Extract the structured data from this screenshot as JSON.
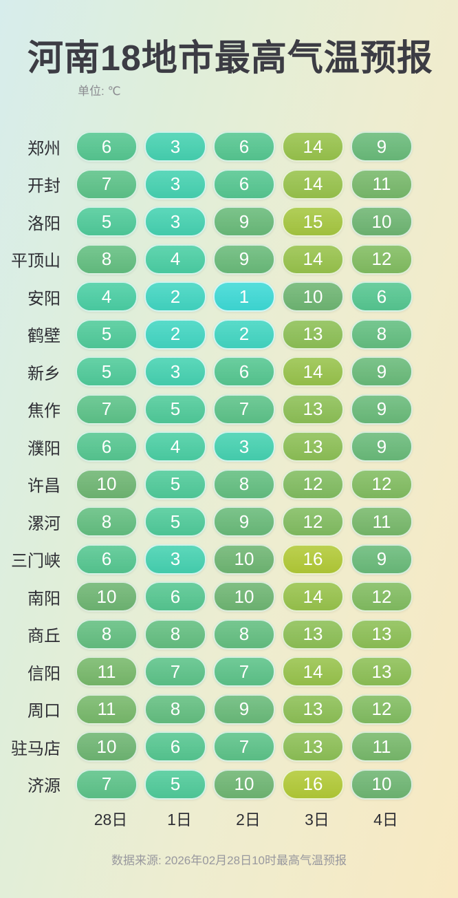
{
  "header": {
    "title": "河南18地市最高气温预报",
    "unit_label": "单位: ℃"
  },
  "chart_data": {
    "type": "heatmap",
    "title": "河南18地市最高气温预报",
    "unit": "℃",
    "columns": [
      "28日",
      "1日",
      "2日",
      "3日",
      "4日"
    ],
    "rows": [
      {
        "city": "郑州",
        "values": [
          6,
          3,
          6,
          14,
          9
        ]
      },
      {
        "city": "开封",
        "values": [
          7,
          3,
          6,
          14,
          11
        ]
      },
      {
        "city": "洛阳",
        "values": [
          5,
          3,
          9,
          15,
          10
        ]
      },
      {
        "city": "平顶山",
        "values": [
          8,
          4,
          9,
          14,
          12
        ]
      },
      {
        "city": "安阳",
        "values": [
          4,
          2,
          1,
          10,
          6
        ]
      },
      {
        "city": "鹤壁",
        "values": [
          5,
          2,
          2,
          13,
          8
        ]
      },
      {
        "city": "新乡",
        "values": [
          5,
          3,
          6,
          14,
          9
        ]
      },
      {
        "city": "焦作",
        "values": [
          7,
          5,
          7,
          13,
          9
        ]
      },
      {
        "city": "濮阳",
        "values": [
          6,
          4,
          3,
          13,
          9
        ]
      },
      {
        "city": "许昌",
        "values": [
          10,
          5,
          8,
          12,
          12
        ]
      },
      {
        "city": "漯河",
        "values": [
          8,
          5,
          9,
          12,
          11
        ]
      },
      {
        "city": "三门峡",
        "values": [
          6,
          3,
          10,
          16,
          9
        ]
      },
      {
        "city": "南阳",
        "values": [
          10,
          6,
          10,
          14,
          12
        ]
      },
      {
        "city": "商丘",
        "values": [
          8,
          8,
          8,
          13,
          13
        ]
      },
      {
        "city": "信阳",
        "values": [
          11,
          7,
          7,
          14,
          13
        ]
      },
      {
        "city": "周口",
        "values": [
          11,
          8,
          9,
          13,
          12
        ]
      },
      {
        "city": "驻马店",
        "values": [
          10,
          6,
          7,
          13,
          11
        ]
      },
      {
        "city": "济源",
        "values": [
          7,
          5,
          10,
          16,
          10
        ]
      }
    ],
    "color_scale": {
      "1": "#3edad6",
      "2": "#42d6c2",
      "3": "#46d2b1",
      "4": "#4bcfa4",
      "5": "#50cb9a",
      "6": "#56c791",
      "7": "#5dc389",
      "8": "#64bf81",
      "9": "#6abb7a",
      "10": "#6fb673",
      "11": "#78b96b",
      "12": "#82bd61",
      "13": "#8dc056",
      "14": "#98c34c",
      "15": "#a6c741",
      "16": "#b2ca37"
    },
    "legend_position": "none",
    "grid": false
  },
  "footer": {
    "source": "数据来源: 2026年02月28日10时最高气温预报"
  }
}
